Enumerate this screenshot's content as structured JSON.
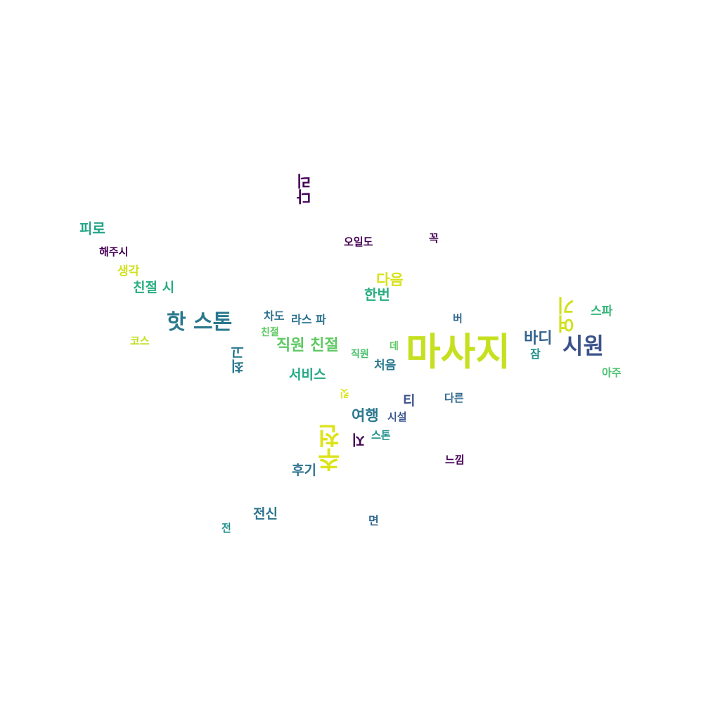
{
  "palette": {
    "purple": "#440154",
    "blue": "#3b528b",
    "teal": "#21918c",
    "green": "#27ad81",
    "lightgreen": "#5ec962",
    "yellow": "#bddf26",
    "bright_yellow": "#dde318"
  },
  "words": {
    "massage": "마사지",
    "siwon": "시원",
    "hot_stone": "핫 스톤",
    "recommend": "추천",
    "here": "여기",
    "body": "바디",
    "staff_kind": "직원 친절",
    "next": "다음",
    "once": "한번",
    "kind_when": "친절 시",
    "fatigue": "피로",
    "leg": "다리",
    "travel": "여행",
    "service": "서비스",
    "best": "최고",
    "whole_body": "전신",
    "review": "후기",
    "feeling": "느낌",
    "face": "면",
    "before": "전",
    "spa": "스파",
    "very": "아주",
    "sleep": "잠",
    "ti": "티",
    "other": "다른",
    "facility": "시설",
    "stone": "스톤",
    "ji": "지",
    "first": "처음",
    "staff": "직원",
    "place": "데",
    "cha_do": "차도",
    "ras_pa": "라스 파",
    "kind": "친절",
    "course": "코스",
    "think": "생각",
    "do_for_me": "해주시",
    "today_too": "오일도",
    "surely": "꼭",
    "beo": "버",
    "kis": "킷"
  }
}
